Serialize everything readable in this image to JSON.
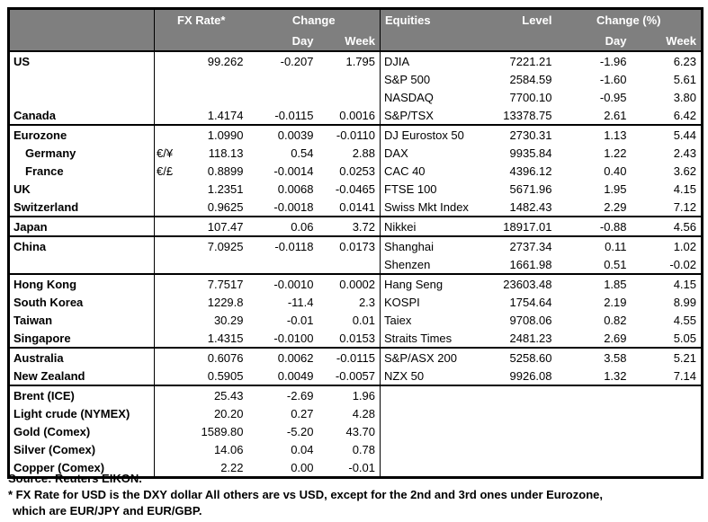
{
  "header": {
    "fx_rate": "FX Rate*",
    "fx_change": "Change",
    "fx_day": "Day",
    "fx_week": "Week",
    "equities": "Equities",
    "level": "Level",
    "eq_change": "Change (%)",
    "eq_day": "Day",
    "eq_week": "Week"
  },
  "colors": {
    "header_bg": "#7f7f7f",
    "header_text": "#ffffff",
    "border": "#000000",
    "body_text": "#000000"
  },
  "sections": [
    {
      "rows": [
        {
          "label": "US",
          "pair": "",
          "rate": "99.262",
          "day": "-0.207",
          "week": "1.795",
          "eq": "DJIA",
          "level": "7221.21",
          "eq_day": "-1.96",
          "eq_week": "6.23"
        },
        {
          "label": "",
          "pair": "",
          "rate": "",
          "day": "",
          "week": "",
          "eq": "S&P 500",
          "level": "2584.59",
          "eq_day": "-1.60",
          "eq_week": "5.61"
        },
        {
          "label": "",
          "pair": "",
          "rate": "",
          "day": "",
          "week": "",
          "eq": "NASDAQ",
          "level": "7700.10",
          "eq_day": "-0.95",
          "eq_week": "3.80"
        },
        {
          "label": "Canada",
          "pair": "",
          "rate": "1.4174",
          "day": "-0.0115",
          "week": "0.0016",
          "eq": "S&P/TSX",
          "level": "13378.75",
          "eq_day": "2.61",
          "eq_week": "6.42"
        }
      ]
    },
    {
      "rows": [
        {
          "label": "Eurozone",
          "pair": "",
          "rate": "1.0990",
          "day": "0.0039",
          "week": "-0.0110",
          "eq": "DJ Eurostox 50",
          "level": "2730.31",
          "eq_day": "1.13",
          "eq_week": "5.44"
        },
        {
          "label": "Germany",
          "indent": true,
          "pair": "€/¥",
          "rate": "118.13",
          "day": "0.54",
          "week": "2.88",
          "eq": "DAX",
          "level": "9935.84",
          "eq_day": "1.22",
          "eq_week": "2.43"
        },
        {
          "label": "France",
          "indent": true,
          "pair": "€/£",
          "rate": "0.8899",
          "day": "-0.0014",
          "week": "0.0253",
          "eq": "CAC 40",
          "level": "4396.12",
          "eq_day": "0.40",
          "eq_week": "3.62"
        },
        {
          "label": "UK",
          "pair": "",
          "rate": "1.2351",
          "day": "0.0068",
          "week": "-0.0465",
          "eq": "FTSE 100",
          "level": "5671.96",
          "eq_day": "1.95",
          "eq_week": "4.15"
        },
        {
          "label": "Switzerland",
          "pair": "",
          "rate": "0.9625",
          "day": "-0.0018",
          "week": "0.0141",
          "eq": "Swiss Mkt Index",
          "level": "1482.43",
          "eq_day": "2.29",
          "eq_week": "7.12"
        }
      ]
    },
    {
      "rows": [
        {
          "label": "Japan",
          "pair": "",
          "rate": "107.47",
          "day": "0.06",
          "week": "3.72",
          "eq": "Nikkei",
          "level": "18917.01",
          "eq_day": "-0.88",
          "eq_week": "4.56"
        }
      ]
    },
    {
      "rows": [
        {
          "label": "China",
          "pair": "",
          "rate": "7.0925",
          "day": "-0.0118",
          "week": "0.0173",
          "eq": "Shanghai",
          "level": "2737.34",
          "eq_day": "0.11",
          "eq_week": "1.02"
        },
        {
          "label": "",
          "pair": "",
          "rate": "",
          "day": "",
          "week": "",
          "eq": "Shenzen",
          "level": "1661.98",
          "eq_day": "0.51",
          "eq_week": "-0.02"
        }
      ]
    },
    {
      "rows": [
        {
          "label": "Hong Kong",
          "pair": "",
          "rate": "7.7517",
          "day": "-0.0010",
          "week": "0.0002",
          "eq": "Hang Seng",
          "level": "23603.48",
          "eq_day": "1.85",
          "eq_week": "4.15"
        },
        {
          "label": "South Korea",
          "pair": "",
          "rate": "1229.8",
          "day": "-11.4",
          "week": "2.3",
          "eq": "KOSPI",
          "level": "1754.64",
          "eq_day": "2.19",
          "eq_week": "8.99"
        },
        {
          "label": "Taiwan",
          "pair": "",
          "rate": "30.29",
          "day": "-0.01",
          "week": "0.01",
          "eq": "Taiex",
          "level": "9708.06",
          "eq_day": "0.82",
          "eq_week": "4.55"
        },
        {
          "label": "Singapore",
          "pair": "",
          "rate": "1.4315",
          "day": "-0.0100",
          "week": "0.0153",
          "eq": "Straits Times",
          "level": "2481.23",
          "eq_day": "2.69",
          "eq_week": "5.05"
        }
      ]
    },
    {
      "rows": [
        {
          "label": "Australia",
          "pair": "",
          "rate": "0.6076",
          "day": "0.0062",
          "week": "-0.0115",
          "eq": "S&P/ASX  200",
          "level": "5258.60",
          "eq_day": "3.58",
          "eq_week": "5.21"
        },
        {
          "label": "New Zealand",
          "pair": "",
          "rate": "0.5905",
          "day": "0.0049",
          "week": "-0.0057",
          "eq": "NZX 50",
          "level": "9926.08",
          "eq_day": "1.32",
          "eq_week": "7.14"
        }
      ]
    },
    {
      "rows": [
        {
          "label": "Brent (ICE)",
          "pair": "",
          "rate": "25.43",
          "day": "-2.69",
          "week": "1.96",
          "eq": "",
          "level": "",
          "eq_day": "",
          "eq_week": ""
        },
        {
          "label": "Light crude (NYMEX)",
          "pair": "",
          "rate": "20.20",
          "day": "0.27",
          "week": "4.28",
          "eq": "",
          "level": "",
          "eq_day": "",
          "eq_week": ""
        },
        {
          "label": "Gold (Comex)",
          "pair": "",
          "rate": "1589.80",
          "day": "-5.20",
          "week": "43.70",
          "eq": "",
          "level": "",
          "eq_day": "",
          "eq_week": ""
        },
        {
          "label": "Silver (Comex)",
          "pair": "",
          "rate": "14.06",
          "day": "0.04",
          "week": "0.78",
          "eq": "",
          "level": "",
          "eq_day": "",
          "eq_week": ""
        },
        {
          "label": "Copper (Comex)",
          "pair": "",
          "rate": "2.22",
          "day": "0.00",
          "week": "-0.01",
          "eq": "",
          "level": "",
          "eq_day": "",
          "eq_week": ""
        }
      ]
    }
  ],
  "footer": {
    "source": "Source:  Reuters EIKON.",
    "note1": "* FX Rate for USD is the DXY dollar  All others are vs USD, except for the 2nd and 3rd ones under Eurozone,",
    "note2": "which are EUR/JPY and EUR/GBP."
  }
}
